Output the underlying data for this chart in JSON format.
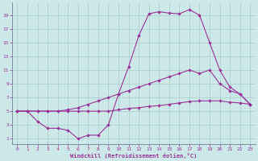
{
  "xlabel": "Windchill (Refroidissement éolien,°C)",
  "bg_color": "#cce8e8",
  "line_color": "#993399",
  "grid_color": "#aacccc",
  "x_ticks": [
    0,
    1,
    2,
    3,
    4,
    5,
    6,
    7,
    8,
    9,
    10,
    11,
    12,
    13,
    14,
    15,
    16,
    17,
    18,
    19,
    20,
    21,
    22,
    23
  ],
  "y_ticks": [
    1,
    3,
    5,
    7,
    9,
    11,
    13,
    15,
    17,
    19
  ],
  "xlim": [
    -0.5,
    23.5
  ],
  "ylim": [
    0.2,
    20.8
  ],
  "curve1_x": [
    0,
    1,
    2,
    3,
    4,
    5,
    6,
    7,
    8,
    9,
    10,
    11,
    12,
    13,
    14,
    15,
    16,
    17,
    18,
    19,
    20,
    21,
    22,
    23
  ],
  "curve1_y": [
    5,
    5,
    3.5,
    2.5,
    2.5,
    2.2,
    1.0,
    1.5,
    1.5,
    3.0,
    7.5,
    11.5,
    16.0,
    19.2,
    19.5,
    19.3,
    19.2,
    19.8,
    19.0,
    15.0,
    11.0,
    8.5,
    7.5,
    6.0
  ],
  "curve2_x": [
    0,
    1,
    2,
    3,
    4,
    5,
    6,
    7,
    8,
    9,
    10,
    11,
    12,
    13,
    14,
    15,
    16,
    17,
    18,
    19,
    20,
    21,
    22,
    23
  ],
  "curve2_y": [
    5,
    5,
    5,
    5,
    5,
    5.2,
    5.5,
    6.0,
    6.5,
    7.0,
    7.5,
    8.0,
    8.5,
    9.0,
    9.5,
    10.0,
    10.5,
    11.0,
    10.5,
    11.0,
    9.0,
    8.0,
    7.5,
    6.0
  ],
  "curve3_x": [
    0,
    1,
    2,
    3,
    4,
    5,
    6,
    7,
    8,
    9,
    10,
    11,
    12,
    13,
    14,
    15,
    16,
    17,
    18,
    19,
    20,
    21,
    22,
    23
  ],
  "curve3_y": [
    5,
    5,
    5,
    5,
    5,
    5,
    5,
    5,
    5,
    5,
    5.2,
    5.4,
    5.5,
    5.7,
    5.8,
    6.0,
    6.2,
    6.4,
    6.5,
    6.5,
    6.5,
    6.3,
    6.2,
    6.0
  ]
}
